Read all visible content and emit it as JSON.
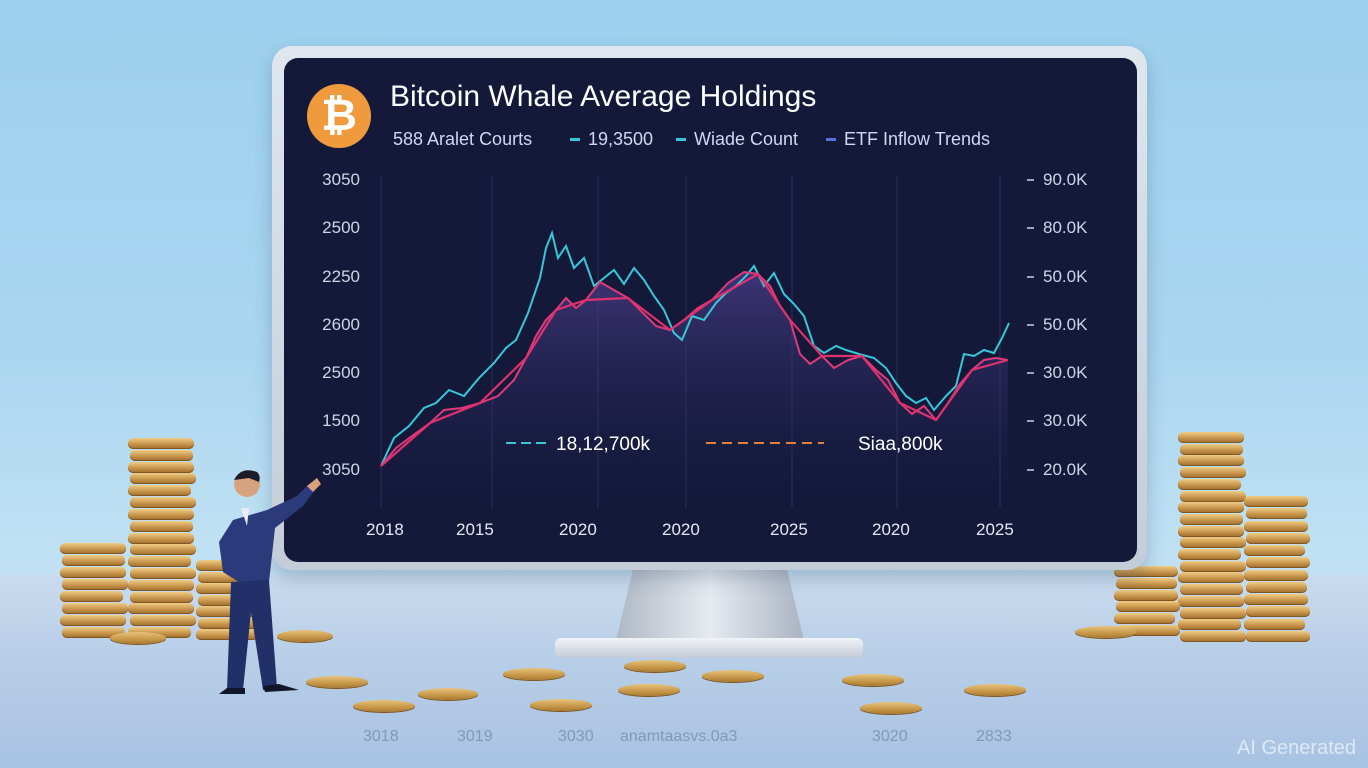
{
  "screen": {
    "logo_glyph": "₿",
    "title": "Bitcoin Whale Average Holdings",
    "legend": [
      {
        "label": "588 Aralet Courts",
        "color": ""
      },
      {
        "label": "19,3500",
        "color": "#38c7d8"
      },
      {
        "label": "Wiade Count",
        "color": "#38c7d8"
      },
      {
        "label": "ETF Inflow Trends",
        "color": "#5a6de0"
      }
    ],
    "y_left": [
      "3050",
      "2500",
      "2250",
      "2600",
      "2500",
      "1500",
      "3050"
    ],
    "y_right": [
      "90.0K",
      "80.0K",
      "50.0K",
      "50.0K",
      "30.0K",
      "30.0K",
      "20.0K"
    ],
    "x_labels": [
      "2018",
      "2015",
      "2020",
      "2020",
      "2025",
      "2020",
      "2025"
    ],
    "annotation_left": "18,12,700k",
    "annotation_right": "Siaa,800k"
  },
  "reflection_text": [
    "3018",
    "3019",
    "3030",
    "anamtaasvs.0a3",
    "3020",
    "2833"
  ],
  "watermark": "AI Generated",
  "colors": {
    "screen_bg": "#14193a",
    "cyan_line": "#38c7d8",
    "pink_line": "#e03a7a",
    "bitcoin": "#f09a3e"
  }
}
